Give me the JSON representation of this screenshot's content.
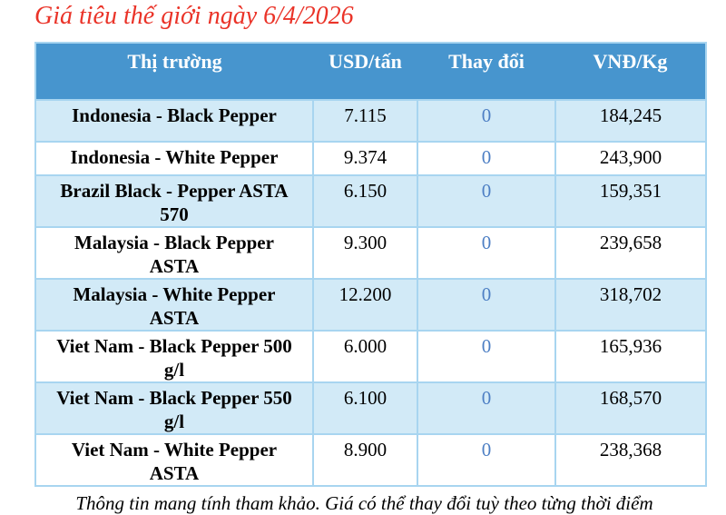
{
  "title": "Giá tiêu thế giới ngày 6/4/2026",
  "chart_data": {
    "type": "table",
    "title": "Giá tiêu thế giới ngày 6/4/2026",
    "columns": [
      "Thị trường",
      "USD/tấn",
      "Thay đổi",
      "VNĐ/Kg"
    ],
    "rows": [
      [
        "Indonesia - Black Pepper",
        "7.115",
        "0",
        "184,245"
      ],
      [
        "Indonesia - White Pepper",
        "9.374",
        "0",
        "243,900"
      ],
      [
        "Brazil Black - Pepper ASTA\n570",
        "6.150",
        "0",
        "159,351"
      ],
      [
        "Malaysia - Black Pepper\nASTA",
        "9.300",
        "0",
        "239,658"
      ],
      [
        "Malaysia - White Pepper\nASTA",
        "12.200",
        "0",
        "318,702"
      ],
      [
        "Viet Nam - Black Pepper 500\ng/l",
        "6.000",
        "0",
        "165,936"
      ],
      [
        "Viet Nam - Black Pepper 550\ng/l",
        "6.100",
        "0",
        "168,570"
      ],
      [
        "Viet Nam - White Pepper\nASTA",
        "8.900",
        "0",
        "238,368"
      ]
    ],
    "footnote": "Thông tin mang tính tham khảo. Giá có thể thay đổi tuỳ theo từng thời điểm"
  },
  "colors": {
    "title_red": "#ea3328",
    "header_bg": "#4795ce",
    "header_text": "#ffffff",
    "row_stripe_bg": "#d2eaf7",
    "row_white_bg": "#ffffff",
    "grid_border": "#a8d5f0",
    "change_value_blue": "#4d7fc4",
    "body_text": "#000000"
  }
}
